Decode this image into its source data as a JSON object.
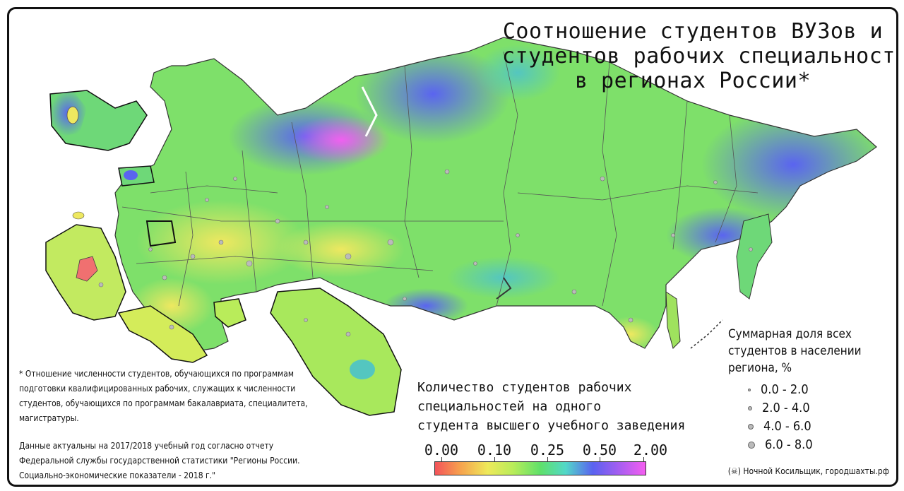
{
  "title": {
    "line1": "Соотношение студентов ВУЗов и",
    "line2": "студентов рабочих специальностей",
    "line3": "в регионах России*"
  },
  "footnote": {
    "line1": "* Отношение численности студентов, обучающихся по программам",
    "line2": "подготовки квалифицированных рабочих, служащих к численности",
    "line3": "студентов, обучающихся по программам бакалавриата, специалитета,",
    "line4": "магистратуры.",
    "line5": "Данные актуальны на 2017/2018 учебный год согласно отчету",
    "line6": "Федеральной службы государственной статистики \"Регионы России.",
    "line7": "Социально-экономические показатели - 2018 г.\""
  },
  "color_scale": {
    "title_line1": "Количество студентов рабочих",
    "title_line2": "специальностей на одного",
    "title_line3": "студента высшего учебного заведения",
    "ticks": [
      "0.00",
      "0.10",
      "0.25",
      "0.50",
      "2.00"
    ],
    "colors": [
      "#f3535a",
      "#eee95a",
      "#5fe06a",
      "#5a62f0",
      "#f55ef0"
    ]
  },
  "size_legend": {
    "title_line1": "Суммарная доля всех",
    "title_line2": "студентов в населении",
    "title_line3": "региона, %",
    "items": [
      "0.0 - 2.0",
      "2.0 - 4.0",
      "4.0 - 6.0",
      "6.0 - 8.0"
    ]
  },
  "credit": "(☠) Ночной Косильщик, городшахты.рф"
}
